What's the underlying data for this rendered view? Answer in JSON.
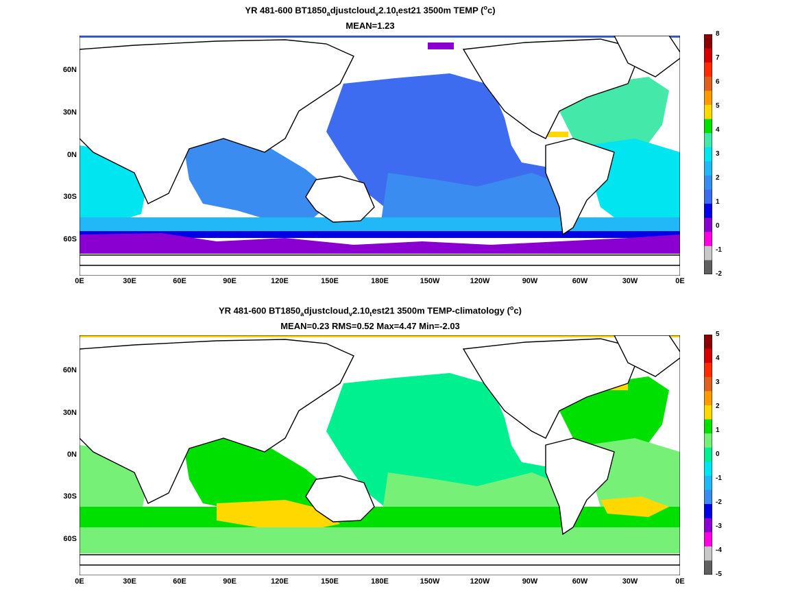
{
  "panels": [
    {
      "title": {
        "pre": "YR 481-600 BT1850",
        "s1": "a",
        "mid1": "djustcloud",
        "s2": "v",
        "mid2": "2.10",
        "s3": "t",
        "post": "est21 3500m TEMP (",
        "deg": "o",
        "unit": "c)"
      },
      "stats": "MEAN=1.23",
      "colorbar": {
        "labels": [
          "8",
          "7",
          "6",
          "5",
          "4",
          "3",
          "2",
          "1",
          "0",
          "-1",
          "-2"
        ],
        "colors": [
          "#8b0000",
          "#d40000",
          "#ff2a00",
          "#e06020",
          "#ff9900",
          "#ffd800",
          "#00e000",
          "#44e8a8",
          "#00e5f0",
          "#22b8f8",
          "#3a8cf0",
          "#3d6cf0",
          "#0000e6",
          "#8a00d0",
          "#ff00e0",
          "#c8c8c8",
          "#606060"
        ]
      }
    },
    {
      "title": {
        "pre": "YR 481-600 BT1850",
        "s1": "a",
        "mid1": "djustcloud",
        "s2": "v",
        "mid2": "2.10",
        "s3": "t",
        "post": "est21 3500m TEMP-climatology (",
        "deg": "o",
        "unit": "c)"
      },
      "stats": "MEAN=0.23   RMS=0.52   Max=4.47   Min=-2.03",
      "colorbar": {
        "labels": [
          "5",
          "4",
          "3",
          "2",
          "1",
          "0",
          "-1",
          "-2",
          "-3",
          "-4",
          "-5"
        ],
        "colors": [
          "#8b0000",
          "#d40000",
          "#ff2a00",
          "#e06020",
          "#ff9900",
          "#ffd800",
          "#00e000",
          "#77f077",
          "#00f090",
          "#00e5f0",
          "#22b8f8",
          "#3a8cf0",
          "#0000e6",
          "#8a00d0",
          "#ff00e0",
          "#c8c8c8",
          "#606060"
        ]
      }
    }
  ],
  "lat_labels": [
    "60N",
    "30N",
    "0N",
    "30S",
    "60S"
  ],
  "lon_labels": [
    "0E",
    "30E",
    "60E",
    "90E",
    "120E",
    "150E",
    "180E",
    "150W",
    "120W",
    "90W",
    "60W",
    "30W",
    "0E"
  ]
}
